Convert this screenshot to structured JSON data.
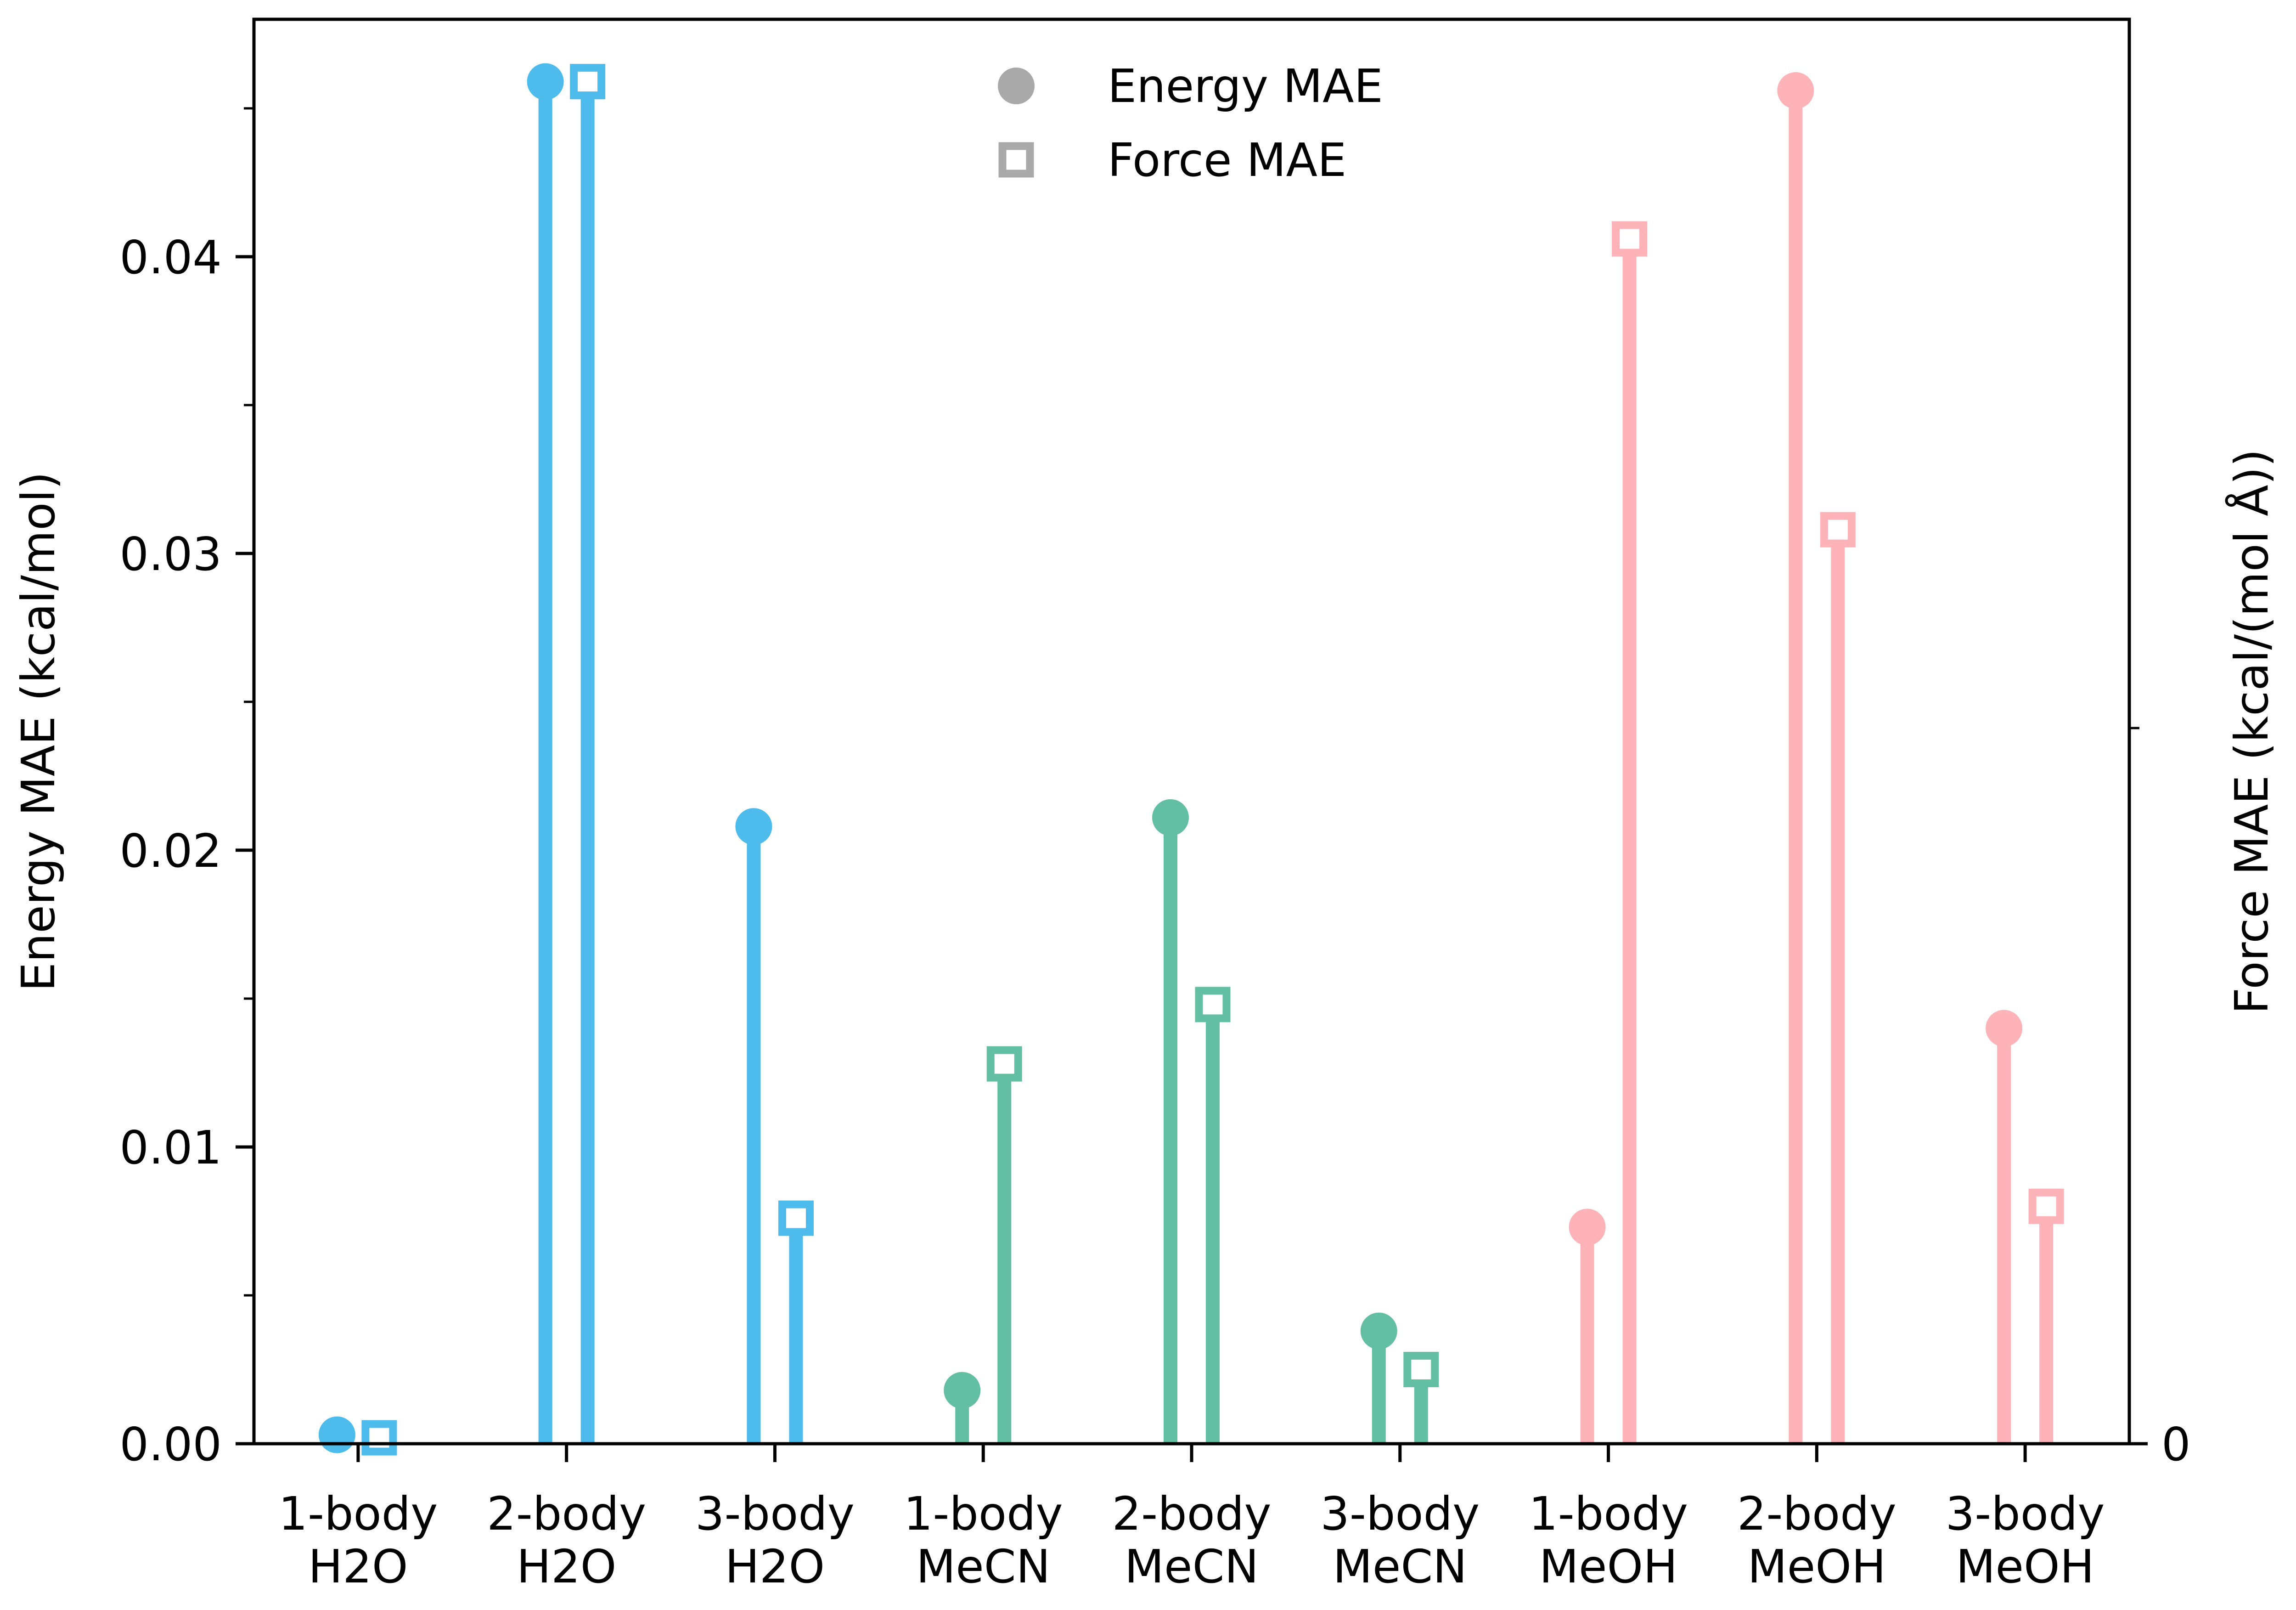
{
  "chart_data": {
    "type": "stem",
    "categories": [
      [
        "1-body",
        "H2O"
      ],
      [
        "2-body",
        "H2O"
      ],
      [
        "3-body",
        "H2O"
      ],
      [
        "1-body",
        "MeCN"
      ],
      [
        "2-body",
        "MeCN"
      ],
      [
        "3-body",
        "MeCN"
      ],
      [
        "1-body",
        "MeOH"
      ],
      [
        "2-body",
        "MeOH"
      ],
      [
        "3-body",
        "MeOH"
      ]
    ],
    "series": [
      {
        "name": "Energy MAE",
        "marker": "circle",
        "axis": "left",
        "values": [
          0.0003,
          0.0459,
          0.0208,
          0.0018,
          0.0211,
          0.0038,
          0.0073,
          0.0456,
          0.014
        ]
      },
      {
        "name": "Force MAE",
        "marker": "hollow-square",
        "axis": "right",
        "values": [
          0.0002,
          0.0459,
          0.0076,
          0.0128,
          0.0148,
          0.0025,
          0.0406,
          0.0308,
          0.008
        ]
      }
    ],
    "category_colors": [
      "#4dbbeb",
      "#4dbbeb",
      "#4dbbeb",
      "#62bfa1",
      "#62bfa1",
      "#62bfa1",
      "#fdb3b8",
      "#fdb3b8",
      "#fdb3b8"
    ],
    "legend_marker_color": "#a9a9a9",
    "ylabel_left": "Energy MAE (kcal/mol)",
    "ylabel_right": "Force MAE (kcal/(mol Å))",
    "ylim": [
      0,
      0.048
    ],
    "left_ticks": [
      "0.00",
      "0.01",
      "0.02",
      "0.03",
      "0.04"
    ],
    "right_ticks": [
      "0"
    ],
    "legend_position": "top-center",
    "grid": false
  }
}
